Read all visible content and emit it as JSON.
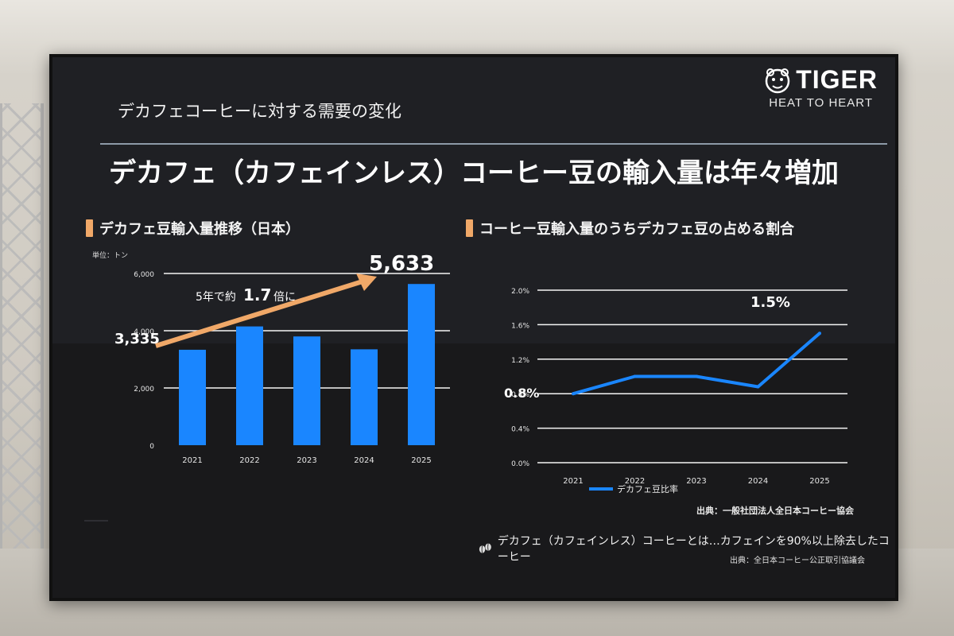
{
  "slide": {
    "topic": "デカフェコーヒーに対する需要の変化",
    "headline": "デカフェ（カフェインレス）コーヒー豆の輸入量は年々増加",
    "logo": {
      "name": "TIGER",
      "tagline": "HEAT TO HEART",
      "icon": "tiger-face-icon"
    },
    "accent_color": "#f0a868",
    "bar_color": "#1a86ff",
    "left_panel": {
      "title": "デカフェ豆輸入量推移（日本）",
      "unit": "単位：トン",
      "callout_prefix": "5年で約",
      "callout_value": "1.7",
      "callout_suffix": "倍に",
      "start_label": "3,335",
      "end_label": "5,633"
    },
    "right_panel": {
      "title": "コーヒー豆輸入量のうちデカフェ豆の占める割合",
      "start_label": "0.8%",
      "end_label": "1.5%",
      "legend": "デカフェ豆比率",
      "source": "出典：一般社団法人全日本コーヒー協会"
    },
    "footnote": {
      "text": "デカフェ（カフェインレス）コーヒーとは…カフェインを90%以上除去したコーヒー",
      "source": "出典：全日本コーヒー公正取引協議会",
      "icon": "coffee-bean-icon"
    }
  },
  "chart_data": [
    {
      "type": "bar",
      "title": "デカフェ豆輸入量推移（日本）",
      "ylabel": "単位：トン",
      "categories": [
        "2021",
        "2022",
        "2023",
        "2024",
        "2025"
      ],
      "values": [
        3335,
        4150,
        3800,
        3350,
        5633
      ],
      "ylim": [
        0,
        6000
      ],
      "yticks": [
        "0",
        "2,000",
        "4,000",
        "6,000"
      ],
      "grid": true,
      "legend": "none"
    },
    {
      "type": "line",
      "title": "コーヒー豆輸入量のうちデカフェ豆の占める割合",
      "categories": [
        "2021",
        "2022",
        "2023",
        "2024",
        "2025"
      ],
      "series": [
        {
          "name": "デカフェ豆比率",
          "values": [
            0.8,
            1.0,
            1.0,
            0.88,
            1.5
          ]
        }
      ],
      "ylim": [
        0,
        2.0
      ],
      "yticks": [
        "0.0%",
        "0.4%",
        "0.8%",
        "1.2%",
        "1.6%",
        "2.0%"
      ],
      "grid": true,
      "legend": "bottom"
    }
  ]
}
